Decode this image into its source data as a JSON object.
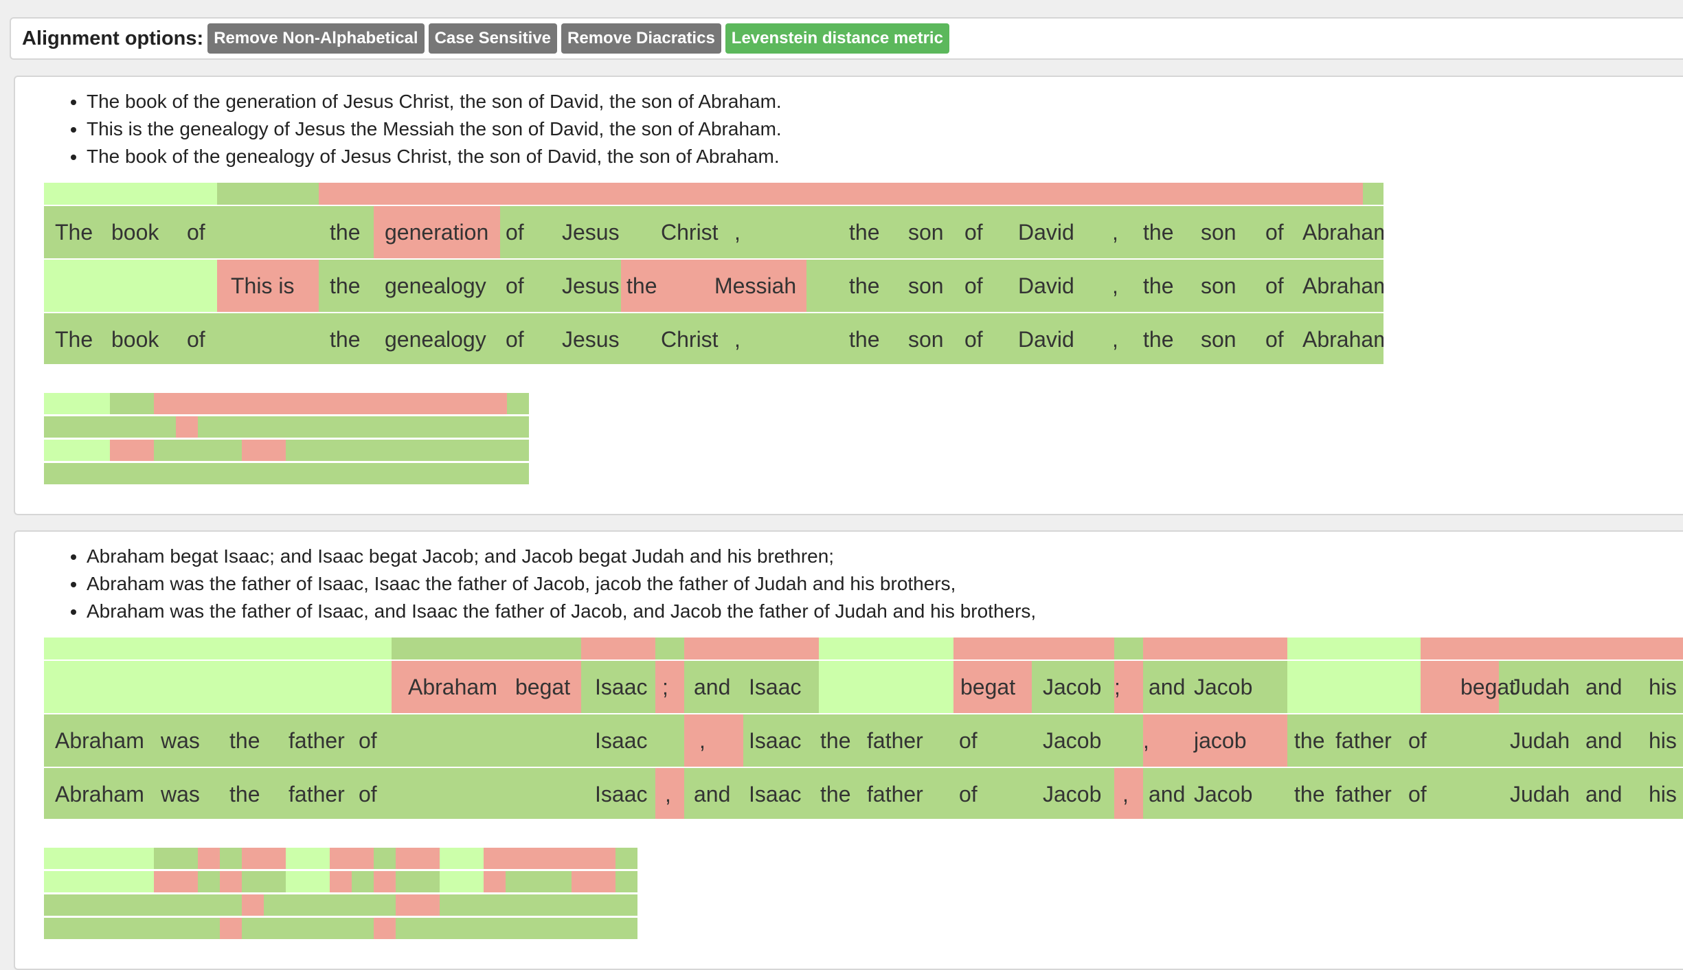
{
  "alignment_options": {
    "label": "Alignment options:",
    "buttons": [
      {
        "label": "Remove Non-Alphabetical",
        "active": false
      },
      {
        "label": "Case Sensitive",
        "active": false
      },
      {
        "label": "Remove Diacratics",
        "active": false
      },
      {
        "label": "Levenstein distance metric",
        "active": true
      }
    ]
  },
  "colors": {
    "light_green": "#ccffaa",
    "green": "#b0d888",
    "red": "#f0a498",
    "button_gray": "#777777",
    "button_green": "#5cb85c"
  },
  "alignments": [
    {
      "sentences": [
        "The book of the generation of Jesus Christ, the son of David, the son of Abraham.",
        "This is the genealogy of Jesus the Messiah the son of David, the son of Abraham.",
        "The book of the genealogy of Jesus Christ, the son of David, the son of Abraham."
      ],
      "rows": [
        [
          "The",
          "book",
          "of",
          "",
          "the",
          "generation",
          "of",
          "Jesus",
          "Christ",
          ",",
          "",
          "the",
          "son",
          "of",
          "David",
          ",",
          "the",
          "son",
          "of",
          "Abraham",
          "."
        ],
        [
          "",
          "",
          "",
          "This is",
          "the",
          "genealogy",
          "of",
          "Jesus",
          "the",
          "Messiah",
          "",
          "the",
          "son",
          "of",
          "David",
          ",",
          "the",
          "son",
          "of",
          "Abraham",
          "."
        ],
        [
          "The",
          "book",
          "of",
          "",
          "the",
          "genealogy",
          "of",
          "Jesus",
          "Christ",
          ",",
          "",
          "the",
          "son",
          "of",
          "David",
          ",",
          "the",
          "son",
          "of",
          "Abraham",
          "."
        ]
      ]
    },
    {
      "sentences": [
        "Abraham begat Isaac; and Isaac begat Jacob; and Jacob begat Judah and his brethren;",
        "Abraham was the father of Isaac, Isaac the father of Jacob, jacob the father of Judah and his brothers,",
        "Abraham was the father of Isaac, and Isaac the father of Jacob, and Jacob the father of Judah and his brothers,"
      ],
      "rows": [
        [
          "",
          "",
          "",
          "",
          "",
          "Abraham",
          "begat",
          "Isaac",
          ";",
          "and",
          "Isaac",
          "",
          "",
          "",
          "begat",
          "Jacob",
          ";",
          "and",
          "Jacob",
          "",
          "",
          "",
          "begat",
          "Judah",
          "and",
          "his"
        ],
        [
          "Abraham",
          "was",
          "the",
          "father",
          "of",
          "",
          "",
          "Isaac",
          ",",
          "",
          "Isaac",
          "the",
          "father",
          "of",
          "",
          "Jacob",
          ",",
          "",
          "jacob",
          "the",
          "father",
          "of",
          "",
          "Judah",
          "and",
          "his"
        ],
        [
          "Abraham",
          "was",
          "the",
          "father",
          "of",
          "",
          "",
          "Isaac",
          ",",
          "and",
          "Isaac",
          "the",
          "father",
          "of",
          "",
          "Jacob",
          ",",
          "and",
          "Jacob",
          "the",
          "father",
          "of",
          "",
          "Judah",
          "and",
          "his"
        ]
      ]
    }
  ]
}
